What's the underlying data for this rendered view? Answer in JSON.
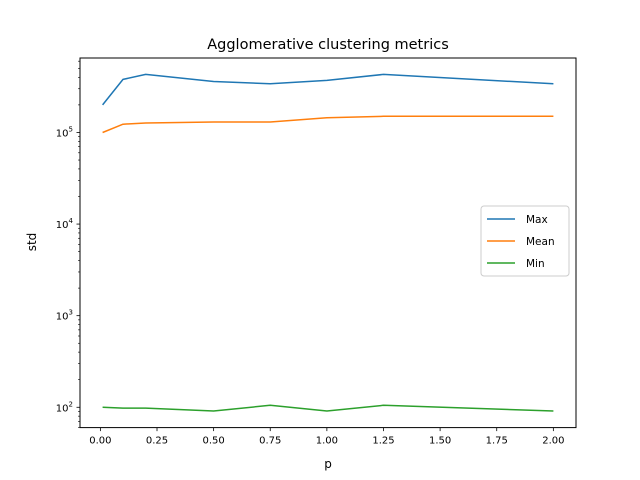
{
  "chart_data": {
    "type": "line",
    "title": "Agglomerative clustering metrics",
    "xlabel": "p",
    "ylabel": "std",
    "xlim": [
      -0.09,
      2.1
    ],
    "ylim": [
      60,
      650000
    ],
    "yscale": "log",
    "x_ticks": [
      0.0,
      0.25,
      0.5,
      0.75,
      1.0,
      1.25,
      1.5,
      1.75,
      2.0
    ],
    "x_tick_labels": [
      "0.00",
      "0.25",
      "0.50",
      "0.75",
      "1.00",
      "1.25",
      "1.50",
      "1.75",
      "2.00"
    ],
    "y_ticks": [
      100,
      1000,
      10000,
      100000
    ],
    "y_tick_labels": [
      {
        "base": "10",
        "exp": "2"
      },
      {
        "base": "10",
        "exp": "3"
      },
      {
        "base": "10",
        "exp": "4"
      },
      {
        "base": "10",
        "exp": "5"
      }
    ],
    "grid": false,
    "legend_position": "center-right",
    "series": [
      {
        "name": "Max",
        "color": "#1f77b4",
        "x": [
          0.01,
          0.1,
          0.2,
          0.5,
          0.75,
          1.0,
          1.25,
          2.0
        ],
        "y": [
          200000,
          380000,
          430000,
          360000,
          340000,
          370000,
          430000,
          340000
        ]
      },
      {
        "name": "Mean",
        "color": "#ff7f0e",
        "x": [
          0.01,
          0.1,
          0.2,
          0.5,
          0.75,
          1.0,
          1.25,
          2.0
        ],
        "y": [
          100000,
          123000,
          127000,
          130000,
          130000,
          145000,
          150000,
          150000
        ]
      },
      {
        "name": "Min",
        "color": "#2ca02c",
        "x": [
          0.01,
          0.1,
          0.2,
          0.5,
          0.75,
          1.0,
          1.25,
          2.0
        ],
        "y": [
          100,
          98,
          98,
          91,
          105,
          91,
          105,
          91
        ]
      }
    ]
  }
}
